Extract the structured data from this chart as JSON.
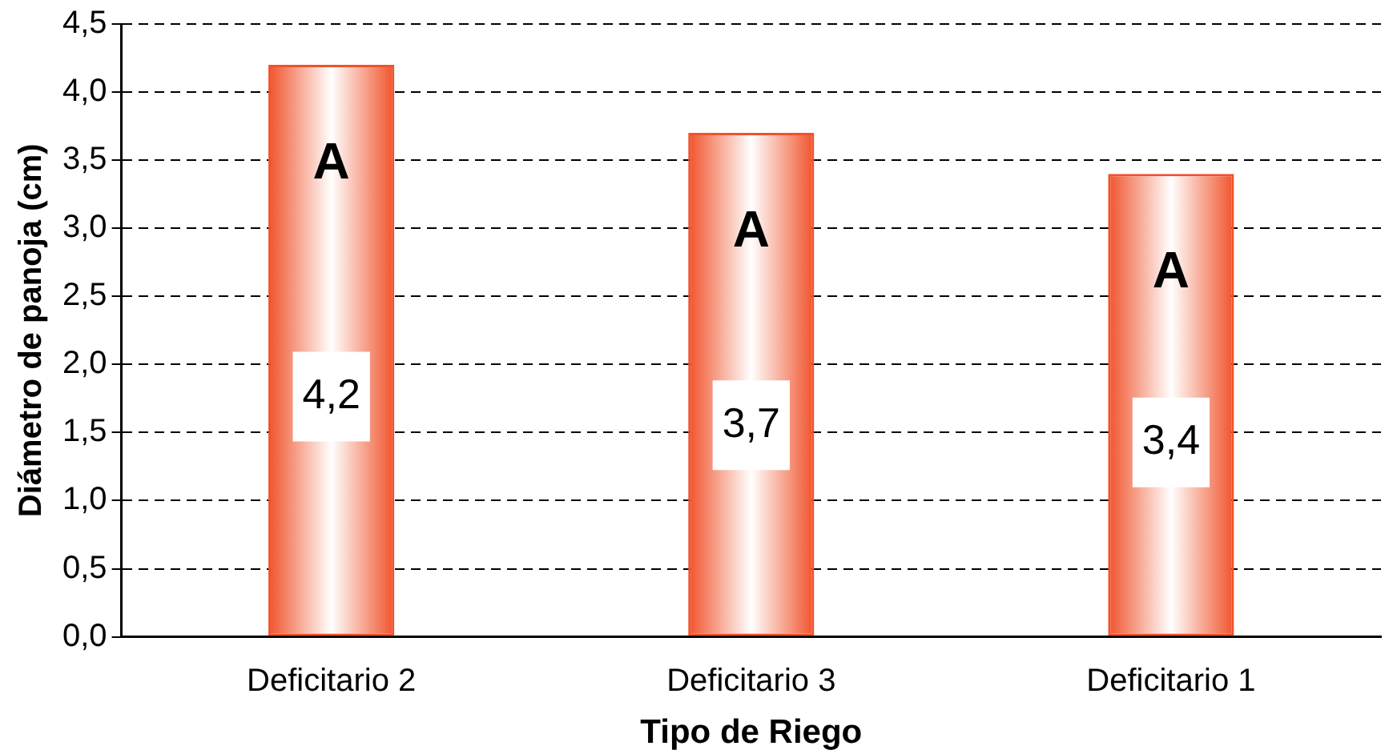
{
  "chart_data": {
    "type": "bar",
    "xlabel": "Tipo de Riego",
    "ylabel": "Diámetro de panoja (cm)",
    "categories": [
      "Deficitario 2",
      "Deficitario 3",
      "Deficitario 1"
    ],
    "values": [
      4.2,
      3.7,
      3.4
    ],
    "color": "#f0522a",
    "value_labels": [
      "4,2",
      "3,7",
      "3,4"
    ],
    "annotations": [
      "A",
      "A",
      "A"
    ],
    "ylim": [
      0,
      4.5
    ],
    "yticks": [
      {
        "value": 0,
        "label": "0,0"
      },
      {
        "value": 0.5,
        "label": "0,5"
      },
      {
        "value": 1,
        "label": "1,0"
      },
      {
        "value": 1.5,
        "label": "1,5"
      },
      {
        "value": 2,
        "label": "2,0"
      },
      {
        "value": 2.5,
        "label": "2,5"
      },
      {
        "value": 3,
        "label": "3,0"
      },
      {
        "value": 3.5,
        "label": "3,5"
      },
      {
        "value": 4,
        "label": "4,0"
      },
      {
        "value": 4.5,
        "label": "4,5"
      }
    ],
    "grid": "y",
    "legend": false
  }
}
